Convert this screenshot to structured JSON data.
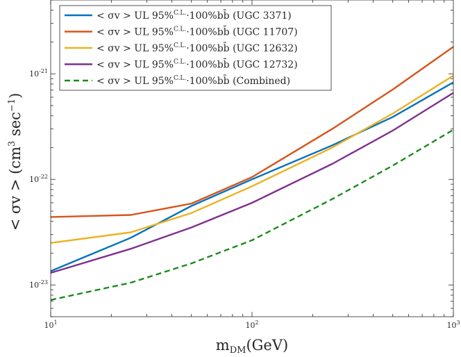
{
  "chart_data": {
    "type": "line",
    "xscale": "log",
    "yscale": "log",
    "xlim": [
      10,
      1000
    ],
    "ylim": [
      5e-24,
      5e-21
    ],
    "xlabel": "m_DM(GeV)",
    "ylabel": "< σv > (cm³ sec⁻¹)",
    "x_ticks": [
      {
        "value": 10,
        "base": "10",
        "exp": "1"
      },
      {
        "value": 100,
        "base": "10",
        "exp": "2"
      },
      {
        "value": 1000,
        "base": "10",
        "exp": "3"
      }
    ],
    "y_ticks": [
      {
        "value": 1e-23,
        "base": "10",
        "exp": "-23"
      },
      {
        "value": 1e-22,
        "base": "10",
        "exp": "-22"
      },
      {
        "value": 1e-21,
        "base": "10",
        "exp": "-21"
      }
    ],
    "series": [
      {
        "name": "< σv > UL 95%C.L. 100% bb̄ (UGC 3371)",
        "color": "#0072BD",
        "dash": "solid",
        "x": [
          10,
          25,
          50,
          100,
          250,
          500,
          1000
        ],
        "values": [
          1.35e-23,
          2.8e-23,
          5.6e-23,
          1e-22,
          2.1e-22,
          3.9e-22,
          8.3e-22
        ]
      },
      {
        "name": "< σv > UL 95%C.L. 100% bb̄ (UGC 11707)",
        "color": "#D95319",
        "dash": "solid",
        "x": [
          10,
          25,
          50,
          100,
          250,
          500,
          1000
        ],
        "values": [
          4.4e-23,
          4.6e-23,
          5.9e-23,
          1.05e-22,
          3e-22,
          7.1e-22,
          1.8e-21
        ]
      },
      {
        "name": "< σv > UL 95%C.L. 100% bb̄ (UGC 12632)",
        "color": "#EDB120",
        "dash": "solid",
        "x": [
          10,
          25,
          50,
          100,
          250,
          500,
          1000
        ],
        "values": [
          2.5e-23,
          3.15e-23,
          4.8e-23,
          8.6e-23,
          2e-22,
          4.2e-22,
          9.6e-22
        ]
      },
      {
        "name": "< σv > UL 95%C.L. 100% bb̄ (UGC 12732)",
        "color": "#7E2F8E",
        "dash": "solid",
        "x": [
          10,
          25,
          50,
          100,
          250,
          500,
          1000
        ],
        "values": [
          1.3e-23,
          2.2e-23,
          3.5e-23,
          6e-23,
          1.4e-22,
          2.9e-22,
          6.6e-22
        ]
      },
      {
        "name": "< σv > UL 95%C.L. 100% bb̄ (Combined)",
        "color": "#198C19",
        "dash": "dashed",
        "x": [
          10,
          25,
          50,
          100,
          250,
          500,
          1000
        ],
        "values": [
          7.2e-24,
          1.05e-23,
          1.6e-23,
          2.65e-23,
          6.5e-23,
          1.35e-22,
          2.95e-22
        ]
      }
    ],
    "legend": {
      "placement": "top-left",
      "entries": [
        {
          "prefix": "< σv >  UL 95%",
          "sup": "C.L.",
          "suffix": "·100%bb̄ (UGC 3371)"
        },
        {
          "prefix": "< σv >  UL 95%",
          "sup": "C.L.",
          "suffix": "·100%bb̄ (UGC 11707)"
        },
        {
          "prefix": "< σv >  UL 95%",
          "sup": "C.L.",
          "suffix": "·100%bb̄ (UGC 12632)"
        },
        {
          "prefix": "< σv >  UL 95%",
          "sup": "C.L.",
          "suffix": "·100%bb̄ (UGC 12732)"
        },
        {
          "prefix": "< σv >  UL 95%",
          "sup": "C.L.",
          "suffix": "·100%bb̄ (Combined)"
        }
      ]
    },
    "grid": false
  }
}
